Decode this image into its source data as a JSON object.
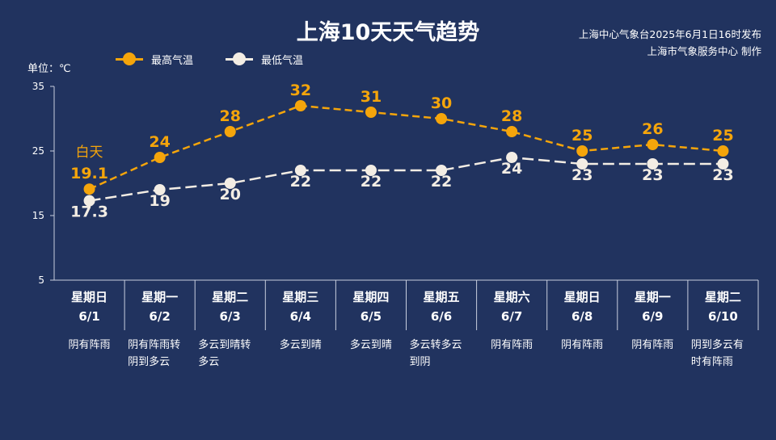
{
  "title": "上海10天天气趋势",
  "source_lines": [
    "上海中心气象台2025年6月1日16时发布",
    "上海市气象服务中心 制作"
  ],
  "unit": "单位：℃",
  "colors": {
    "high": "#f5a50b",
    "low": "#f3ede4",
    "axis": "#c8cede",
    "background": "#21335f"
  },
  "annotation": "白天",
  "chart_data": {
    "type": "line",
    "title": "上海10天天气趋势",
    "ylabel": "单位：℃",
    "ylim": [
      5,
      35
    ],
    "yticks": [
      5,
      15,
      25,
      35
    ],
    "categories": [
      "6/1",
      "6/2",
      "6/3",
      "6/4",
      "6/5",
      "6/6",
      "6/7",
      "6/8",
      "6/9",
      "6/10"
    ],
    "series": [
      {
        "name": "最高气温",
        "values": [
          19.1,
          24,
          28,
          32,
          31,
          30,
          28,
          25,
          26,
          25
        ],
        "labels": [
          "19.1",
          "24",
          "28",
          "32",
          "31",
          "30",
          "28",
          "25",
          "26",
          "25"
        ]
      },
      {
        "name": "最低气温",
        "values": [
          17.3,
          19,
          20,
          22,
          22,
          22,
          24,
          23,
          23,
          23
        ],
        "labels": [
          "17.3",
          "19",
          "20",
          "22",
          "22",
          "22",
          "24",
          "23",
          "23",
          "23"
        ]
      }
    ],
    "legend_position": "top-left",
    "grid": false
  },
  "days": [
    {
      "weekday": "星期日",
      "date": "6/1",
      "desc": [
        "阴有阵雨"
      ]
    },
    {
      "weekday": "星期一",
      "date": "6/2",
      "desc": [
        "阴有阵雨转",
        "阴到多云"
      ]
    },
    {
      "weekday": "星期二",
      "date": "6/3",
      "desc": [
        "多云到晴转",
        "多云"
      ]
    },
    {
      "weekday": "星期三",
      "date": "6/4",
      "desc": [
        "多云到晴"
      ]
    },
    {
      "weekday": "星期四",
      "date": "6/5",
      "desc": [
        "多云到晴"
      ]
    },
    {
      "weekday": "星期五",
      "date": "6/6",
      "desc": [
        "多云转多云",
        "到阴"
      ]
    },
    {
      "weekday": "星期六",
      "date": "6/7",
      "desc": [
        "阴有阵雨"
      ]
    },
    {
      "weekday": "星期日",
      "date": "6/8",
      "desc": [
        "阴有阵雨"
      ]
    },
    {
      "weekday": "星期一",
      "date": "6/9",
      "desc": [
        "阴有阵雨"
      ]
    },
    {
      "weekday": "星期二",
      "date": "6/10",
      "desc": [
        "阴到多云有",
        "时有阵雨"
      ]
    }
  ]
}
